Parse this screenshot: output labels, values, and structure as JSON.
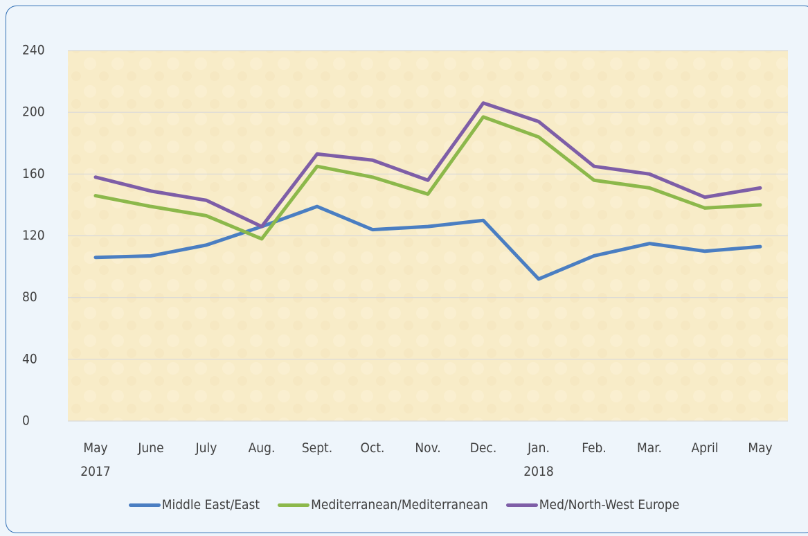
{
  "chart_data": {
    "type": "line",
    "categories": [
      "May\n2017",
      "June",
      "July",
      "Aug.",
      "Sept.",
      "Oct.",
      "Nov.",
      "Dec.",
      "Jan.\n2018",
      "Feb.",
      "Mar.",
      "April",
      "May"
    ],
    "series": [
      {
        "name": "Middle East/East",
        "color": "#4a7ec2",
        "values": [
          106,
          107,
          114,
          126,
          139,
          124,
          126,
          130,
          92,
          107,
          115,
          110,
          113
        ]
      },
      {
        "name": "Mediterranean/Mediterranean",
        "color": "#8cb84b",
        "values": [
          146,
          139,
          133,
          118,
          165,
          158,
          147,
          197,
          184,
          156,
          151,
          138,
          140
        ]
      },
      {
        "name": "Med/North-West Europe",
        "color": "#7e5ea7",
        "values": [
          158,
          149,
          143,
          126,
          173,
          169,
          156,
          206,
          194,
          165,
          160,
          145,
          151
        ]
      }
    ],
    "ylim": [
      0,
      240
    ],
    "yticks": [
      0,
      40,
      80,
      120,
      160,
      200,
      240
    ],
    "grid": true
  }
}
